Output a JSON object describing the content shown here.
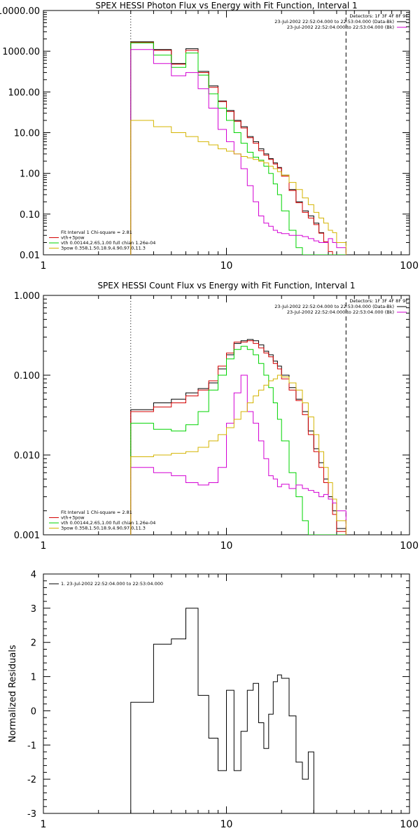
{
  "colors": {
    "black": "#000000",
    "red": "#d40000",
    "green": "#00d400",
    "magenta": "#d400d4",
    "yellow": "#d4b400",
    "axis": "#000000"
  },
  "chart_data": [
    {
      "type": "line",
      "step": true,
      "title": "SPEX HESSI Photon Flux vs Energy with Fit Function, Interval 1",
      "xlabel": "",
      "ylabel": "",
      "xscale": "log",
      "yscale": "log",
      "xlim": [
        1,
        100
      ],
      "ylim": [
        0.01,
        10000
      ],
      "xticks": [
        "1",
        "10",
        "100"
      ],
      "yticks": [
        "10000.00",
        "1000.00",
        "100.00",
        "10.00",
        "1.00",
        "0.10",
        "0.01"
      ],
      "vlines": [
        {
          "x": 3,
          "style": "dotted"
        },
        {
          "x": 45,
          "style": "dashed"
        }
      ],
      "header": [
        "Detectors: 1F 3F 4F 8F 9F",
        "23-Jul-2002 22:52:04.000 to 22:53:04.000 (Data-Bk)",
        "23-Jul-2002 22:52:04.000 to 22:53:04.000 (Bk)"
      ],
      "legend": [
        "Fit Interval 1    Chi-square = 2.81",
        "vth+3pow",
        "vth 0.00144,2.65,1.00  full chian 1.26e-04",
        "3pow 0.358,1.50,18.9,4.90,97.0,11.3"
      ],
      "bin_edges": [
        3,
        4,
        5,
        6,
        7,
        8,
        9,
        10,
        11,
        12,
        13,
        14,
        15,
        16,
        17,
        18,
        19,
        20,
        22,
        24,
        26,
        28,
        30,
        32,
        34,
        36,
        38,
        40,
        45
      ],
      "series": [
        {
          "name": "",
          "color": "black",
          "values": [
            1700,
            1100,
            500,
            1150,
            320,
            140,
            60,
            35,
            20,
            14,
            8,
            6,
            4,
            3,
            2.3,
            1.8,
            1.4,
            0.9,
            0.4,
            0.2,
            0.12,
            0.09,
            0.06,
            0.035,
            0.02,
            0.01,
            0.01,
            0.01
          ]
        },
        {
          "name": "",
          "color": "red",
          "values": [
            1650,
            1050,
            480,
            1050,
            300,
            130,
            58,
            33,
            19,
            13,
            7.5,
            5.5,
            3.6,
            2.8,
            2.2,
            1.7,
            1.35,
            0.85,
            0.38,
            0.19,
            0.11,
            0.08,
            0.055,
            0.034,
            0.021,
            0.012,
            0.01,
            0.01
          ]
        },
        {
          "name": "",
          "color": "green",
          "values": [
            1600,
            800,
            400,
            900,
            260,
            90,
            40,
            20,
            10,
            5.5,
            3.3,
            2.5,
            2.1,
            1.5,
            1.0,
            0.55,
            0.3,
            0.12,
            0.04,
            0.015,
            0.01,
            0.01,
            0.01,
            0.01,
            0.01,
            0.01,
            0.01,
            0.01
          ]
        },
        {
          "name": "",
          "color": "magenta",
          "values": [
            1100,
            500,
            250,
            300,
            120,
            40,
            12,
            6,
            3,
            1.3,
            0.5,
            0.2,
            0.09,
            0.06,
            0.05,
            0.04,
            0.035,
            0.033,
            0.03,
            0.03,
            0.028,
            0.025,
            0.022,
            0.02,
            0.02,
            0.025,
            0.02,
            0.015
          ]
        },
        {
          "name": "",
          "color": "yellow",
          "values": [
            20,
            14,
            10,
            8,
            6,
            5,
            4,
            3.5,
            3,
            2.6,
            2.4,
            2.2,
            2,
            1.8,
            1.5,
            1.3,
            1.1,
            0.9,
            0.6,
            0.4,
            0.25,
            0.17,
            0.11,
            0.08,
            0.06,
            0.04,
            0.035,
            0.02
          ]
        }
      ]
    },
    {
      "type": "line",
      "step": true,
      "title": "SPEX HESSI Count Flux vs Energy with Fit Function, Interval 1",
      "xlabel": "",
      "ylabel": "",
      "xscale": "log",
      "yscale": "log",
      "xlim": [
        1,
        100
      ],
      "ylim": [
        0.001,
        1
      ],
      "xticks": [
        "1",
        "10",
        "100"
      ],
      "yticks": [
        "1.000",
        "0.100",
        "0.010",
        "0.001"
      ],
      "vlines": [
        {
          "x": 3,
          "style": "dotted"
        },
        {
          "x": 45,
          "style": "dashed"
        }
      ],
      "header": [
        "Detectors: 1F 3F 4F 8F 9F",
        "23-Jul-2002 22:52:04.000 to 22:53:04.000 (Data-Bk)",
        "23-Jul-2002 22:52:04.000 to 22:53:04.000 (Bk)"
      ],
      "legend": [
        "Fit Interval 1    Chi-square = 2.81",
        "vth+3pow",
        "vth 0.00144,2.65,1.00  full chian 1.26e-04",
        "3pow 0.358,1.50,18.9,4.90,97.0,11.3"
      ],
      "bin_edges": [
        3,
        4,
        5,
        6,
        7,
        8,
        9,
        10,
        11,
        12,
        13,
        14,
        15,
        16,
        17,
        18,
        19,
        20,
        22,
        24,
        26,
        28,
        30,
        32,
        34,
        36,
        38,
        40,
        45
      ],
      "series": [
        {
          "name": "",
          "color": "black",
          "values": [
            0.037,
            0.045,
            0.05,
            0.06,
            0.068,
            0.08,
            0.12,
            0.18,
            0.25,
            0.27,
            0.28,
            0.27,
            0.24,
            0.2,
            0.18,
            0.15,
            0.13,
            0.1,
            0.07,
            0.05,
            0.035,
            0.02,
            0.012,
            0.008,
            0.005,
            0.003,
            0.002,
            0.0012
          ]
        },
        {
          "name": "",
          "color": "red",
          "values": [
            0.035,
            0.04,
            0.045,
            0.055,
            0.065,
            0.085,
            0.13,
            0.19,
            0.26,
            0.26,
            0.27,
            0.25,
            0.22,
            0.19,
            0.17,
            0.14,
            0.12,
            0.09,
            0.065,
            0.048,
            0.032,
            0.018,
            0.011,
            0.007,
            0.0045,
            0.0028,
            0.0018,
            0.0011
          ]
        },
        {
          "name": "",
          "color": "green",
          "values": [
            0.025,
            0.021,
            0.02,
            0.024,
            0.035,
            0.065,
            0.1,
            0.16,
            0.21,
            0.23,
            0.21,
            0.18,
            0.14,
            0.1,
            0.07,
            0.045,
            0.028,
            0.015,
            0.006,
            0.003,
            0.0015,
            0.001,
            0.001,
            0.001,
            0.001,
            0.001,
            0.001,
            0.001
          ]
        },
        {
          "name": "",
          "color": "magenta",
          "values": [
            0.007,
            0.006,
            0.0055,
            0.0045,
            0.0042,
            0.0045,
            0.007,
            0.025,
            0.06,
            0.1,
            0.035,
            0.025,
            0.015,
            0.009,
            0.0055,
            0.005,
            0.004,
            0.0043,
            0.0038,
            0.0042,
            0.0038,
            0.0036,
            0.0034,
            0.003,
            0.0032,
            0.0028,
            0.0025,
            0.002
          ]
        },
        {
          "name": "",
          "color": "yellow",
          "values": [
            0.0095,
            0.01,
            0.0105,
            0.011,
            0.0125,
            0.015,
            0.018,
            0.022,
            0.028,
            0.035,
            0.045,
            0.055,
            0.065,
            0.075,
            0.085,
            0.09,
            0.1,
            0.095,
            0.08,
            0.065,
            0.045,
            0.03,
            0.018,
            0.011,
            0.007,
            0.0045,
            0.0028,
            0.0015
          ]
        }
      ]
    },
    {
      "type": "line",
      "step": true,
      "title": "",
      "xlabel": "",
      "ylabel": "Normalized Residuals",
      "xscale": "log",
      "yscale": "linear",
      "xlim": [
        1,
        100
      ],
      "ylim": [
        -3,
        4
      ],
      "xticks": [
        "1",
        "10",
        "100"
      ],
      "yticks": [
        "4",
        "3",
        "2",
        "1",
        "0",
        "-1",
        "-2",
        "-3"
      ],
      "legend": [
        "1. 23-Jul-2002 22:52:04.000 to 22:53:04.000"
      ],
      "bin_edges": [
        3,
        4,
        5,
        6,
        7,
        8,
        9,
        10,
        11,
        12,
        13,
        14,
        15,
        16,
        17,
        18,
        19,
        20,
        22,
        24,
        26,
        28,
        30,
        32,
        34,
        36,
        38,
        40,
        45
      ],
      "series": [
        {
          "name": "",
          "color": "black",
          "values": [
            0.25,
            1.95,
            2.1,
            3.0,
            0.45,
            -0.8,
            -1.75,
            0.6,
            -1.75,
            -0.6,
            0.6,
            0.8,
            -0.35,
            -1.1,
            -0.1,
            0.85,
            1.05,
            0.95,
            -0.15,
            -1.5,
            -2.0,
            -1.2,
            -3.0,
            -3.0,
            -3.0,
            -3.0,
            -3.0,
            -3.0
          ]
        }
      ]
    }
  ]
}
